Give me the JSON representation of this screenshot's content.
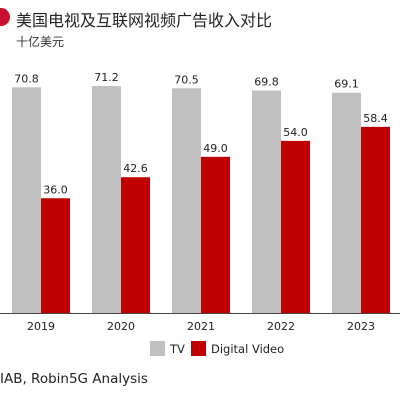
{
  "header": {
    "title": "美国电视及互联网视频广告收入对比",
    "subtitle": "十亿美元"
  },
  "footer": {
    "source": "IAB, Robin5G Analysis"
  },
  "colors": {
    "accent": "#c8102e",
    "tv": "#c0c0c0",
    "digital_video": "#c00000"
  },
  "chart_data": {
    "type": "bar",
    "title": "美国电视及互联网视频广告收入对比",
    "subtitle": "十亿美元",
    "categories": [
      "2019",
      "2020",
      "2021",
      "2022",
      "2023"
    ],
    "series": [
      {
        "name": "TV",
        "values": [
          70.8,
          71.2,
          70.5,
          69.8,
          69.1
        ]
      },
      {
        "name": "Digital Video",
        "values": [
          36.0,
          42.6,
          49.0,
          54.0,
          58.4
        ]
      }
    ],
    "value_labels": [
      [
        "70.8",
        "71.2",
        "70.5",
        "69.8",
        "69.1"
      ],
      [
        "36.0",
        "42.6",
        "49.0",
        "54.0",
        "58.4"
      ]
    ],
    "ylim": [
      0,
      80
    ],
    "grid": false,
    "legend_position": "bottom"
  }
}
